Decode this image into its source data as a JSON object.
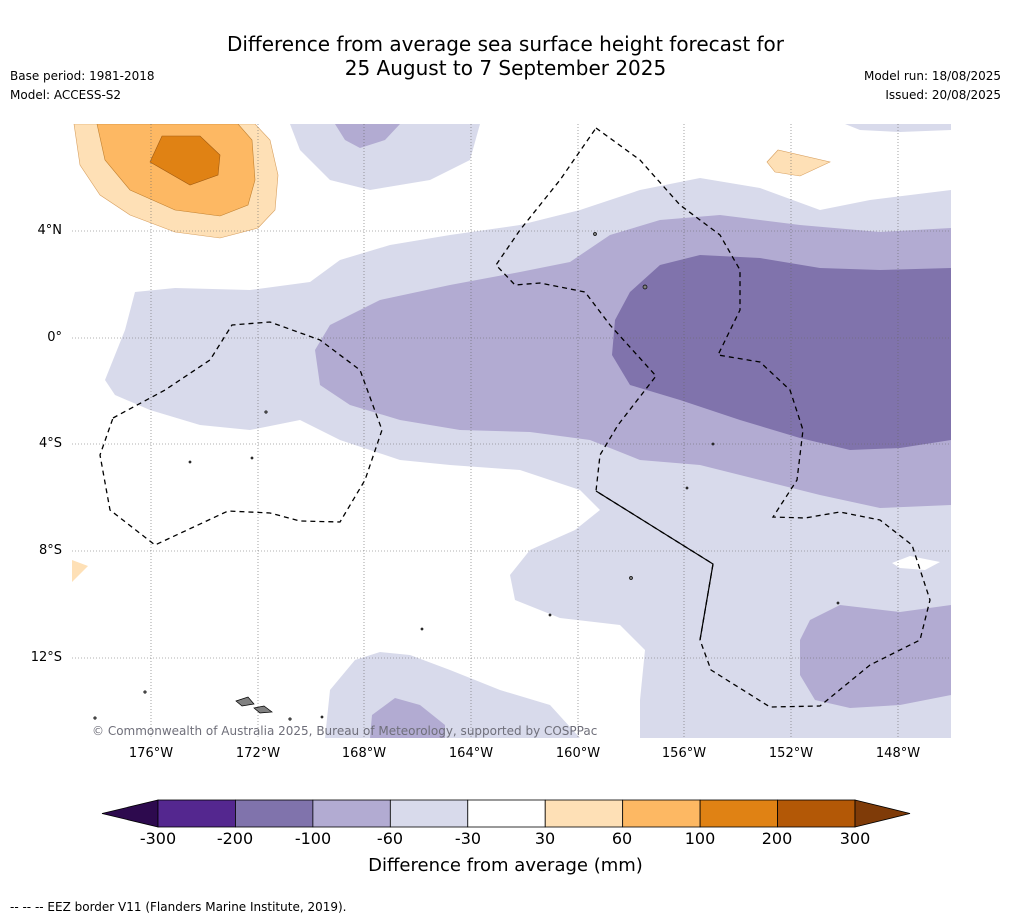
{
  "header": {
    "title_line1": "Difference from average sea surface height forecast for",
    "title_line2": "25 August to 7 September 2025",
    "base_period": "Base period: 1981-2018",
    "model": "Model: ACCESS-S2",
    "model_run": "Model run: 18/08/2025",
    "issued": "Issued: 20/08/2025"
  },
  "map": {
    "lat_labels": [
      "4°N",
      "0°",
      "4°S",
      "8°S",
      "12°S"
    ],
    "lon_labels": [
      "176°W",
      "172°W",
      "168°W",
      "164°W",
      "160°W",
      "156°W",
      "152°W",
      "148°W"
    ],
    "copyright": "© Commonwealth of Australia 2025, Bureau of Meteorology, supported by COSPPac"
  },
  "colorbar": {
    "title": "Difference from average (mm)",
    "ticks": [
      "-300",
      "-200",
      "-100",
      "-60",
      "-30",
      "30",
      "60",
      "100",
      "200",
      "300"
    ],
    "colors": [
      "#2d0a4e",
      "#54278f",
      "#8073ac",
      "#b2abd2",
      "#d8daeb",
      "#ffffff",
      "#fee0b6",
      "#fdb863",
      "#e08214",
      "#b35806",
      "#7f3b08"
    ]
  },
  "footer": {
    "legend_text": "--  --  -- EEZ border V11 (Flanders Marine Institute, 2019)."
  }
}
